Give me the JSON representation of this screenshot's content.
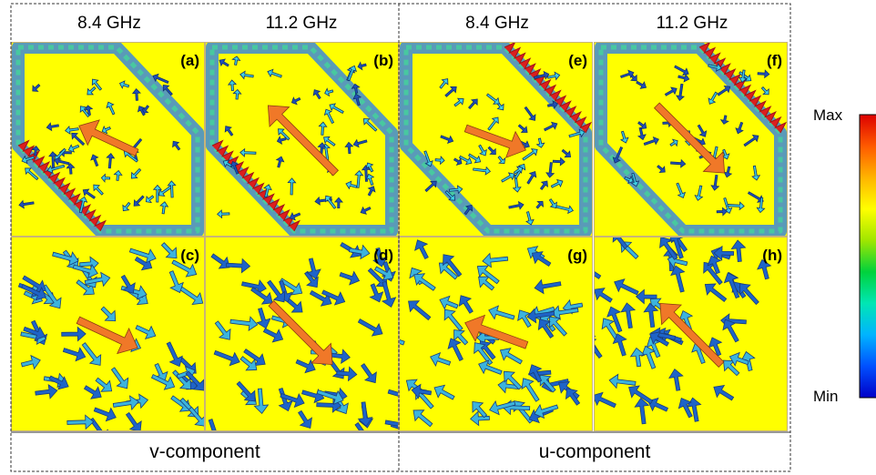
{
  "headers": [
    "8.4 GHz",
    "11.2 GHz",
    "8.4 GHz",
    "11.2 GHz"
  ],
  "components": [
    "v-component",
    "u-component"
  ],
  "panels": [
    {
      "label": "(a)",
      "kind": "hex",
      "arrow_angle_deg": 205
    },
    {
      "label": "(b)",
      "kind": "hex",
      "arrow_angle_deg": 225
    },
    {
      "label": "(e)",
      "kind": "hex",
      "arrow_angle_deg": 20
    },
    {
      "label": "(f)",
      "kind": "hex",
      "arrow_angle_deg": 45
    },
    {
      "label": "(c)",
      "kind": "field",
      "arrow_angle_deg": 25
    },
    {
      "label": "(d)",
      "kind": "field",
      "arrow_angle_deg": 45
    },
    {
      "label": "(g)",
      "kind": "field",
      "arrow_angle_deg": 200
    },
    {
      "label": "(h)",
      "kind": "field",
      "arrow_angle_deg": 225
    }
  ],
  "colorbar": {
    "max_label": "Max",
    "min_label": "Min",
    "stops": [
      "#0000c8",
      "#0050ff",
      "#00b4ff",
      "#00e6b4",
      "#00d23c",
      "#a0e600",
      "#ffff00",
      "#ffb400",
      "#ff5a00",
      "#dc0000"
    ]
  },
  "colors": {
    "background": "#ffff00",
    "arrow_highlight": "#f07828",
    "field_arrow_light": "#3cb4dc",
    "field_arrow_dark": "#1e64c8"
  }
}
